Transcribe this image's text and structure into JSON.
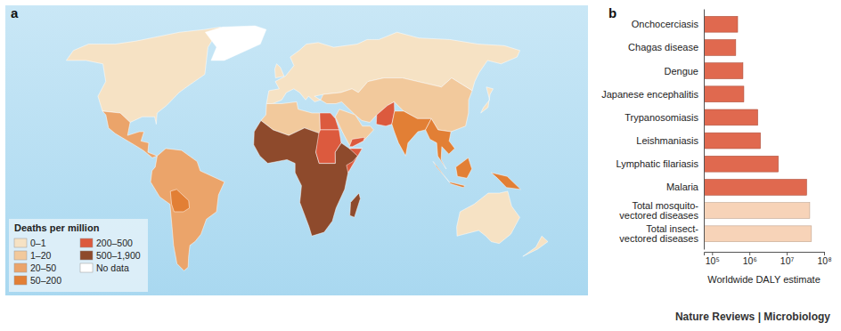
{
  "chart_data": [
    {
      "type": "map",
      "panel": "a",
      "legend_title": "Deaths per million",
      "categories": [
        "0–1",
        "1–20",
        "20–50",
        "50–200",
        "200–500",
        "500–1,900",
        "No data"
      ],
      "colors": [
        "#f6e2c4",
        "#f2c99c",
        "#eba46a",
        "#e27f35",
        "#dc5a3e",
        "#8e4a2c",
        "#ffffff"
      ],
      "legend": "lower left",
      "region_bins": [
        0,
        6,
        2,
        2,
        3,
        0,
        0,
        1,
        1,
        4,
        4,
        3,
        3,
        3,
        3,
        3,
        3,
        0,
        0,
        1,
        4,
        5,
        4,
        4,
        5,
        0
      ]
    },
    {
      "type": "bar",
      "panel": "b",
      "orientation": "horizontal",
      "log": "x",
      "grid": false,
      "categories": [
        "Onchocerciasis",
        "Chagas disease",
        "Dengue",
        "Japanese encephalitis",
        "Trypanosomiasis",
        "Leishmaniasis",
        "Lymphatic filariasis",
        "Malaria",
        "Total mosquito-\nvectored diseases",
        "Total insect-\nvectored diseases"
      ],
      "values": [
        484000,
        430000,
        670000,
        709000,
        1673000,
        1974000,
        5941000,
        33976000,
        41296000,
        45857000
      ],
      "colors": [
        "#e0694f",
        "#e0694f",
        "#e0694f",
        "#e0694f",
        "#e0694f",
        "#e0694f",
        "#e0694f",
        "#e0694f",
        "#f7d3b8",
        "#f7d3b8"
      ],
      "xlim": [
        60000,
        100000000
      ],
      "xticks": [
        {
          "value": 100000,
          "label": "10⁵"
        },
        {
          "value": 1000000,
          "label": "10⁶"
        },
        {
          "value": 10000000,
          "label": "10⁷"
        },
        {
          "value": 100000000,
          "label": "10⁸"
        }
      ],
      "xlabel": "Worldwide DALY estimate"
    }
  ],
  "credit": "Nature Reviews | Microbiology"
}
